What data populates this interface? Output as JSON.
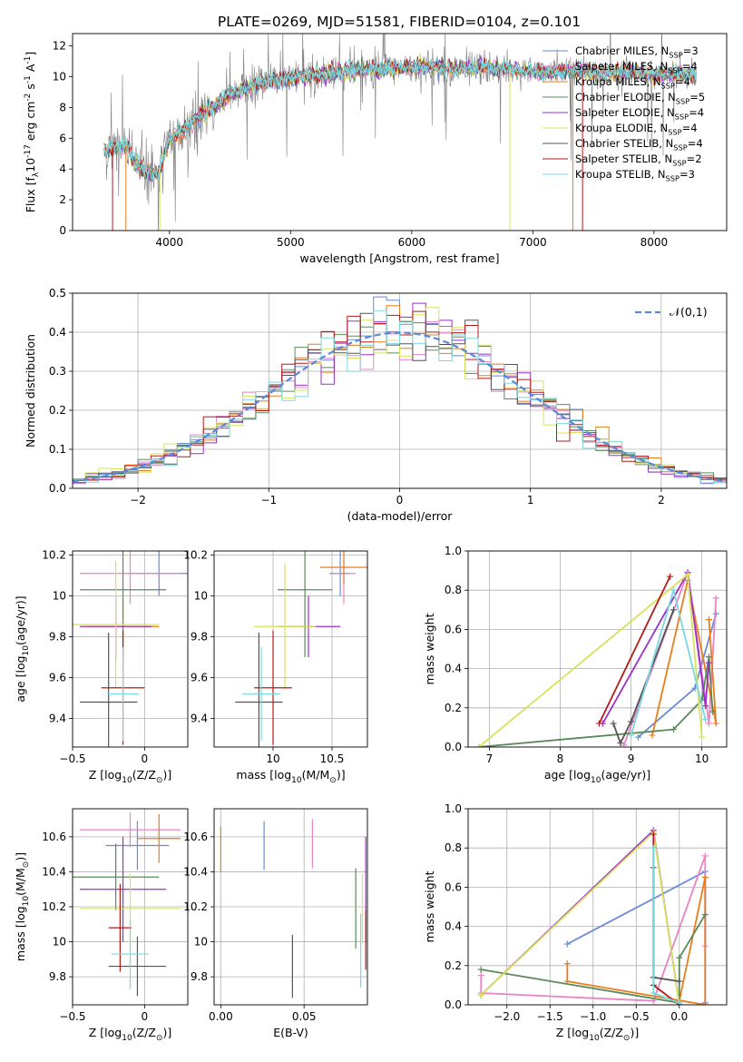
{
  "title": "PLATE=0269, MJD=51581, FIBERID=0104, z=0.101",
  "colors": {
    "series": [
      "#6a8bd6",
      "#e884c4",
      "#e87d1b",
      "#5a8a5a",
      "#9b30c8",
      "#d8e35a",
      "#555555",
      "#b51a1a",
      "#7ad8de"
    ],
    "data_gray": "#808080",
    "gauss": "#5b87d6"
  },
  "legend_labels": [
    "Chabrier MILES, N$_{SSP}$=3",
    "Salpeter MILES, N$_{SSP}$=4",
    "Kroupa MILES, N$_{SSP}$=4",
    "Chabrier ELODIE, N$_{SSP}$=5",
    "Salpeter ELODIE, N$_{SSP}$=4",
    "Kroupa ELODIE, N$_{SSP}$=4",
    "Chabrier STELIB, N$_{SSP}$=4",
    "Salpeter STELIB, N$_{SSP}$=2",
    "Kroupa STELIB, N$_{SSP}$=3"
  ],
  "chart_data": [
    {
      "id": "spectrum",
      "type": "line",
      "title": "PLATE=0269, MJD=51581, FIBERID=0104, z=0.101",
      "xlabel": "wavelength [Angstrom, rest frame]",
      "ylabel": "Flux [f$_\\lambda$10$^{-17}$ erg cm$^{-2}$ s$^{-1}$ A$^{-1}$]",
      "xlim": [
        3200,
        8600
      ],
      "ylim": [
        0,
        12.8
      ],
      "xticks": [
        4000,
        5000,
        6000,
        7000,
        8000
      ],
      "yticks": [
        0,
        2,
        4,
        6,
        8,
        10,
        12
      ],
      "grid": false,
      "legend": "upper right",
      "continuum": {
        "x": [
          3450,
          3550,
          3650,
          3700,
          3800,
          3900,
          4000,
          4100,
          4200,
          4300,
          4400,
          4500,
          4600,
          4800,
          5000,
          5200,
          5400,
          5600,
          5800,
          6000,
          6200,
          6400,
          6600,
          6800,
          7000,
          7200,
          7400,
          7600,
          7800,
          8000,
          8200,
          8350
        ],
        "y": [
          5.2,
          5.4,
          5.5,
          4.6,
          3.8,
          3.6,
          5.9,
          6.5,
          7.2,
          7.6,
          8.2,
          8.8,
          9.2,
          9.7,
          9.8,
          10.1,
          10.3,
          10.4,
          10.5,
          10.6,
          10.6,
          10.5,
          10.6,
          10.5,
          10.3,
          10.3,
          10.4,
          10.2,
          10.3,
          10.1,
          10.2,
          10.2
        ]
      },
      "series_names": [
        "Chabrier MILES",
        "Salpeter MILES",
        "Kroupa MILES",
        "Chabrier ELODIE",
        "Salpeter ELODIE",
        "Kroupa ELODIE",
        "Chabrier STELIB",
        "Salpeter STELIB",
        "Kroupa STELIB"
      ]
    },
    {
      "id": "residuals",
      "type": "step",
      "xlabel": "(data-model)/error",
      "ylabel": "Normed distribution",
      "xlim": [
        -2.5,
        2.5
      ],
      "ylim": [
        0,
        0.5
      ],
      "xticks": [
        -2,
        -1,
        0,
        1,
        2
      ],
      "yticks": [
        0.0,
        0.1,
        0.2,
        0.3,
        0.4,
        0.5
      ],
      "grid": true,
      "legend": "upper right",
      "gauss_label": "$\\mathcal{N}(0,1)$",
      "bin_width": 0.1,
      "bin_start": -2.5
    },
    {
      "id": "age_vs_z",
      "type": "errorbar",
      "xlabel": "Z [log$_{10}$(Z/Z$_\\odot$)]",
      "ylabel": "age  [log$_{10}$(age/yr)]",
      "xlim": [
        -0.5,
        0.3
      ],
      "ylim": [
        9.26,
        10.22
      ],
      "xticks": [
        -0.5,
        0.0
      ],
      "yticks": [
        9.4,
        9.6,
        9.8,
        10.0,
        10.2
      ],
      "grid": true,
      "points": [
        {
          "x": 0.1,
          "y": 10.11,
          "xerr": 0.22,
          "yerr": 0.11
        },
        {
          "x": -0.1,
          "y": 10.11,
          "xerr": 0.35,
          "yerr": 0.15
        },
        {
          "x": -0.15,
          "y": 9.85,
          "xerr": 0.25,
          "yerr": 0.12
        },
        {
          "x": -0.15,
          "y": 10.03,
          "xerr": 0.3,
          "yerr": 0.33
        },
        {
          "x": -0.2,
          "y": 9.85,
          "xerr": 0.25,
          "yerr": 0.15
        },
        {
          "x": -0.2,
          "y": 9.86,
          "xerr": 0.3,
          "yerr": 0.31
        },
        {
          "x": -0.25,
          "y": 9.48,
          "xerr": 0.2,
          "yerr": 0.34
        },
        {
          "x": -0.15,
          "y": 9.55,
          "xerr": 0.15,
          "yerr": 0.28
        },
        {
          "x": -0.15,
          "y": 9.52,
          "xerr": 0.11,
          "yerr": 0.23
        }
      ]
    },
    {
      "id": "age_vs_mass",
      "type": "errorbar",
      "xlabel": "mass [log$_{10}$(M/M$_\\odot$)]",
      "ylabel": "",
      "xlim": [
        9.5,
        10.8
      ],
      "ylim": [
        9.26,
        10.22
      ],
      "xticks": [
        10.0,
        10.5
      ],
      "yticks": [
        9.4,
        9.6,
        9.8,
        10.0,
        10.2
      ],
      "grid": true,
      "points": [
        {
          "x": 10.57,
          "y": 10.11,
          "xerr": 0.09,
          "yerr": 0.11
        },
        {
          "x": 10.6,
          "y": 10.11,
          "xerr": 0.1,
          "yerr": 0.15
        },
        {
          "x": 10.6,
          "y": 10.14,
          "xerr": 0.2,
          "yerr": 0.08
        },
        {
          "x": 10.27,
          "y": 10.03,
          "xerr": 0.23,
          "yerr": 0.33
        },
        {
          "x": 10.3,
          "y": 9.85,
          "xerr": 0.27,
          "yerr": 0.15
        },
        {
          "x": 10.1,
          "y": 9.85,
          "xerr": 0.26,
          "yerr": 0.31
        },
        {
          "x": 9.88,
          "y": 9.48,
          "xerr": 0.2,
          "yerr": 0.34
        },
        {
          "x": 10.0,
          "y": 9.55,
          "xerr": 0.16,
          "yerr": 0.28
        },
        {
          "x": 9.9,
          "y": 9.52,
          "xerr": 0.16,
          "yerr": 0.23
        }
      ]
    },
    {
      "id": "weight_vs_age",
      "type": "line",
      "xlabel": "age  [log$_{10}$(age/yr)]",
      "ylabel": "mass weight",
      "xlim": [
        6.7,
        10.35
      ],
      "ylim": [
        0,
        1.0
      ],
      "xticks": [
        7,
        8,
        9,
        10
      ],
      "yticks": [
        0.0,
        0.2,
        0.4,
        0.6,
        0.8,
        1.0
      ],
      "grid": true,
      "series": [
        {
          "x": [
            9.1,
            9.9,
            10.2
          ],
          "y": [
            0.05,
            0.3,
            0.68
          ]
        },
        {
          "x": [
            8.9,
            9.8,
            10.1,
            10.2
          ],
          "y": [
            0.01,
            0.89,
            0.12,
            0.76
          ]
        },
        {
          "x": [
            9.3,
            9.8,
            10.2,
            10.1
          ],
          "y": [
            0.06,
            0.85,
            0.12,
            0.65
          ]
        },
        {
          "x": [
            6.85,
            9.6,
            10.0,
            10.1,
            10.15
          ],
          "y": [
            0.0,
            0.09,
            0.24,
            0.46,
            0.18
          ]
        },
        {
          "x": [
            8.6,
            9.8,
            10.05,
            10.1
          ],
          "y": [
            0.12,
            0.89,
            0.21,
            0.43
          ]
        },
        {
          "x": [
            6.85,
            9.8,
            10.0
          ],
          "y": [
            0.0,
            0.88,
            0.05
          ]
        },
        {
          "x": [
            8.75,
            8.85,
            9.0,
            9.6
          ],
          "y": [
            0.12,
            0.02,
            0.13,
            0.7
          ]
        },
        {
          "x": [
            8.55,
            9.55
          ],
          "y": [
            0.12,
            0.87
          ]
        },
        {
          "x": [
            9.0,
            9.6,
            10.05
          ],
          "y": [
            0.06,
            0.8,
            0.14
          ]
        }
      ]
    },
    {
      "id": "mass_vs_z",
      "type": "errorbar",
      "xlabel": "Z [log$_{10}$(Z/Z$_\\odot$)]",
      "ylabel": "mass [log$_{10}$(M/M$_\\odot$)]",
      "xlim": [
        -0.5,
        0.3
      ],
      "ylim": [
        9.64,
        10.76
      ],
      "xticks": [
        -0.5,
        0.0
      ],
      "yticks": [
        9.8,
        10.0,
        10.2,
        10.4,
        10.6
      ],
      "grid": true,
      "points": [
        {
          "x": -0.05,
          "y": 10.55,
          "xerr": 0.22,
          "yerr": 0.14
        },
        {
          "x": -0.1,
          "y": 10.64,
          "xerr": 0.35,
          "yerr": 0.1
        },
        {
          "x": 0.1,
          "y": 10.59,
          "xerr": 0.15,
          "yerr": 0.14
        },
        {
          "x": -0.2,
          "y": 10.37,
          "xerr": 0.3,
          "yerr": 0.19
        },
        {
          "x": -0.15,
          "y": 10.3,
          "xerr": 0.3,
          "yerr": 0.3
        },
        {
          "x": -0.1,
          "y": 10.19,
          "xerr": 0.35,
          "yerr": 0.2
        },
        {
          "x": -0.05,
          "y": 9.86,
          "xerr": 0.2,
          "yerr": 0.17
        },
        {
          "x": -0.17,
          "y": 10.08,
          "xerr": 0.08,
          "yerr": 0.25
        },
        {
          "x": -0.1,
          "y": 9.93,
          "xerr": 0.13,
          "yerr": 0.2
        }
      ]
    },
    {
      "id": "mass_vs_ebv",
      "type": "errorbar",
      "xlabel": "E(B-V)",
      "ylabel": "",
      "xlim": [
        -0.004,
        0.088
      ],
      "ylim": [
        9.64,
        10.76
      ],
      "xticks": [
        0.0,
        0.05
      ],
      "yticks": [
        9.8,
        10.0,
        10.2,
        10.4,
        10.6
      ],
      "grid": true,
      "points": [
        {
          "x": 0.026,
          "y": 10.55,
          "xerr": 0,
          "yerr": 0.14
        },
        {
          "x": 0.055,
          "y": 10.56,
          "xerr": 0,
          "yerr": 0.14
        },
        {
          "x": 0.0,
          "y": 10.53,
          "xerr": 0,
          "yerr": 0.13
        },
        {
          "x": 0.081,
          "y": 10.19,
          "xerr": 0,
          "yerr": 0.23
        },
        {
          "x": 0.087,
          "y": 10.3,
          "xerr": 0,
          "yerr": 0.3
        },
        {
          "x": 0.085,
          "y": 10.19,
          "xerr": 0,
          "yerr": 0.2
        },
        {
          "x": 0.043,
          "y": 9.86,
          "xerr": 0,
          "yerr": 0.18
        },
        {
          "x": 0.087,
          "y": 10.01,
          "xerr": 0,
          "yerr": 0.17
        },
        {
          "x": 0.084,
          "y": 9.95,
          "xerr": 0,
          "yerr": 0.21
        }
      ]
    },
    {
      "id": "weight_vs_z",
      "type": "line",
      "xlabel": "Z [log$_{10}$(Z/Z$_\\odot$)]",
      "ylabel": "mass weight",
      "xlim": [
        -2.45,
        0.55
      ],
      "ylim": [
        0,
        1.0
      ],
      "xticks": [
        -2.0,
        -1.5,
        -1.0,
        -0.5,
        0.0
      ],
      "yticks": [
        0.0,
        0.2,
        0.4,
        0.6,
        0.8,
        1.0
      ],
      "grid": true,
      "series": [
        {
          "x": [
            -1.3,
            0.3,
            0.3
          ],
          "y": [
            0.31,
            0.68,
            0.01
          ]
        },
        {
          "x": [
            -2.3,
            -2.3,
            -0.3,
            0.3,
            0.3
          ],
          "y": [
            0.15,
            0.06,
            0.02,
            0.76,
            0.3
          ]
        },
        {
          "x": [
            -1.3,
            -1.3,
            0.3,
            0.3,
            0.0
          ],
          "y": [
            0.21,
            0.12,
            0.0,
            0.65,
            0.02
          ]
        },
        {
          "x": [
            -2.3,
            0.0,
            0.0,
            0.3
          ],
          "y": [
            0.18,
            0.01,
            0.24,
            0.46
          ]
        },
        {
          "x": [
            -2.3,
            -0.3,
            0.0
          ],
          "y": [
            0.05,
            0.89,
            0.0
          ]
        },
        {
          "x": [
            -2.3,
            -0.3,
            0.0
          ],
          "y": [
            0.05,
            0.88,
            0.0
          ]
        },
        {
          "x": [
            -0.3,
            -0.3,
            0.0
          ],
          "y": [
            0.7,
            0.14,
            0.12
          ]
        },
        {
          "x": [
            -0.3,
            -0.3,
            0.0
          ],
          "y": [
            0.87,
            0.1,
            0.0
          ]
        },
        {
          "x": [
            -0.3,
            -0.3,
            0.0
          ],
          "y": [
            0.8,
            0.06,
            0.01
          ]
        }
      ]
    }
  ]
}
